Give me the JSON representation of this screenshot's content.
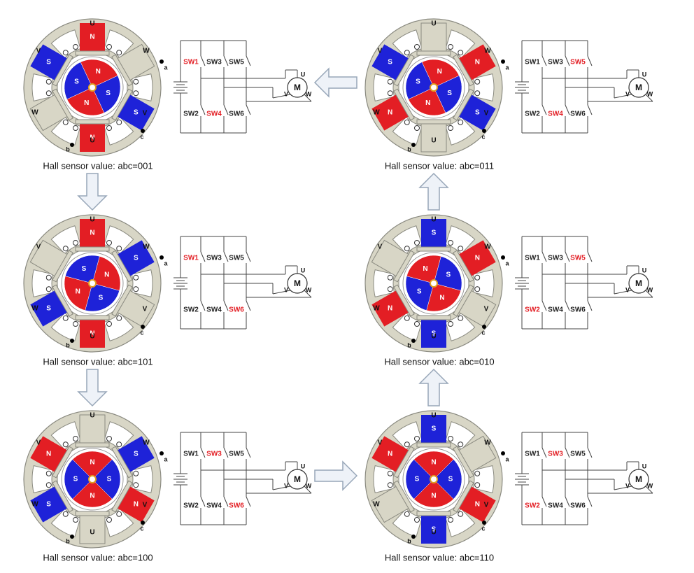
{
  "colors": {
    "N": "#e31e24",
    "S": "#1e22d8",
    "active": "#e31e24",
    "inactive": "#222222"
  },
  "panels": [
    {
      "caption": "Hall sensor value: abc=001",
      "phase_labels": [
        "U",
        "W",
        "V",
        "U",
        "W",
        "V"
      ],
      "poles": [
        {
          "label": "N"
        },
        null,
        {
          "label": "S"
        },
        {
          "label": "N"
        },
        null,
        {
          "label": "S"
        }
      ],
      "rotor_labels": [
        "N",
        "S",
        "N",
        "S"
      ],
      "hall_labels": [
        "a",
        "b",
        "c"
      ],
      "switches": [
        {
          "label": "SW1",
          "active": true
        },
        {
          "label": "SW2",
          "active": false
        },
        {
          "label": "SW3",
          "active": false
        },
        {
          "label": "SW4",
          "active": true
        },
        {
          "label": "SW5",
          "active": false
        },
        {
          "label": "SW6",
          "active": false
        }
      ],
      "motor": {
        "label": "M",
        "terminals": [
          "U",
          "V",
          "W"
        ]
      }
    },
    {
      "caption": "Hall sensor value: abc=101",
      "phase_labels": [
        "U",
        "W",
        "V",
        "U",
        "W",
        "V"
      ],
      "poles": [
        {
          "label": "N"
        },
        {
          "label": "S"
        },
        null,
        {
          "label": "N"
        },
        {
          "label": "S"
        },
        null
      ],
      "rotor_labels": [
        "N",
        "S",
        "N",
        "S"
      ],
      "hall_labels": [
        "a",
        "b",
        "c"
      ],
      "switches": [
        {
          "label": "SW1",
          "active": true
        },
        {
          "label": "SW2",
          "active": false
        },
        {
          "label": "SW3",
          "active": false
        },
        {
          "label": "SW4",
          "active": false
        },
        {
          "label": "SW5",
          "active": false
        },
        {
          "label": "SW6",
          "active": true
        }
      ],
      "motor": {
        "label": "M",
        "terminals": [
          "U",
          "V",
          "W"
        ]
      }
    },
    {
      "caption": "Hall sensor value: abc=100",
      "phase_labels": [
        "U",
        "W",
        "V",
        "U",
        "W",
        "V"
      ],
      "poles": [
        null,
        {
          "label": "S"
        },
        {
          "label": "N"
        },
        null,
        {
          "label": "S"
        },
        {
          "label": "N"
        }
      ],
      "rotor_labels": [
        "S",
        "N",
        "S",
        "N"
      ],
      "hall_labels": [
        "a",
        "b",
        "c"
      ],
      "switches": [
        {
          "label": "SW1",
          "active": false
        },
        {
          "label": "SW2",
          "active": false
        },
        {
          "label": "SW3",
          "active": true
        },
        {
          "label": "SW4",
          "active": false
        },
        {
          "label": "SW5",
          "active": false
        },
        {
          "label": "SW6",
          "active": true
        }
      ],
      "motor": {
        "label": "M",
        "terminals": [
          "U",
          "V",
          "W"
        ]
      }
    },
    {
      "caption": "Hall sensor value: abc=110",
      "phase_labels": [
        "U",
        "W",
        "V",
        "U",
        "W",
        "V"
      ],
      "poles": [
        {
          "label": "S"
        },
        null,
        {
          "label": "N"
        },
        {
          "label": "S"
        },
        null,
        {
          "label": "N"
        }
      ],
      "rotor_labels": [
        "S",
        "N",
        "S",
        "N"
      ],
      "hall_labels": [
        "a",
        "b",
        "c"
      ],
      "switches": [
        {
          "label": "SW1",
          "active": false
        },
        {
          "label": "SW2",
          "active": true
        },
        {
          "label": "SW3",
          "active": true
        },
        {
          "label": "SW4",
          "active": false
        },
        {
          "label": "SW5",
          "active": false
        },
        {
          "label": "SW6",
          "active": false
        }
      ],
      "motor": {
        "label": "M",
        "terminals": [
          "U",
          "V",
          "W"
        ]
      }
    },
    {
      "caption": "Hall sensor value: abc=010",
      "phase_labels": [
        "U",
        "W",
        "V",
        "U",
        "W",
        "V"
      ],
      "poles": [
        {
          "label": "S"
        },
        {
          "label": "N"
        },
        null,
        {
          "label": "S"
        },
        {
          "label": "N"
        },
        null
      ],
      "rotor_labels": [
        "S",
        "N",
        "S",
        "N"
      ],
      "hall_labels": [
        "a",
        "b",
        "c"
      ],
      "switches": [
        {
          "label": "SW1",
          "active": false
        },
        {
          "label": "SW2",
          "active": true
        },
        {
          "label": "SW3",
          "active": false
        },
        {
          "label": "SW4",
          "active": false
        },
        {
          "label": "SW5",
          "active": true
        },
        {
          "label": "SW6",
          "active": false
        }
      ],
      "motor": {
        "label": "M",
        "terminals": [
          "U",
          "V",
          "W"
        ]
      }
    },
    {
      "caption": "Hall sensor value: abc=011",
      "phase_labels": [
        "U",
        "W",
        "V",
        "U",
        "W",
        "V"
      ],
      "poles": [
        null,
        {
          "label": "N"
        },
        {
          "label": "S"
        },
        null,
        {
          "label": "N"
        },
        {
          "label": "S"
        }
      ],
      "rotor_labels": [
        "N",
        "S",
        "N",
        "S"
      ],
      "hall_labels": [
        "a",
        "b",
        "c"
      ],
      "switches": [
        {
          "label": "SW1",
          "active": false
        },
        {
          "label": "SW2",
          "active": false
        },
        {
          "label": "SW3",
          "active": false
        },
        {
          "label": "SW4",
          "active": true
        },
        {
          "label": "SW5",
          "active": true
        },
        {
          "label": "SW6",
          "active": false
        }
      ],
      "motor": {
        "label": "M",
        "terminals": [
          "U",
          "V",
          "W"
        ]
      }
    }
  ]
}
